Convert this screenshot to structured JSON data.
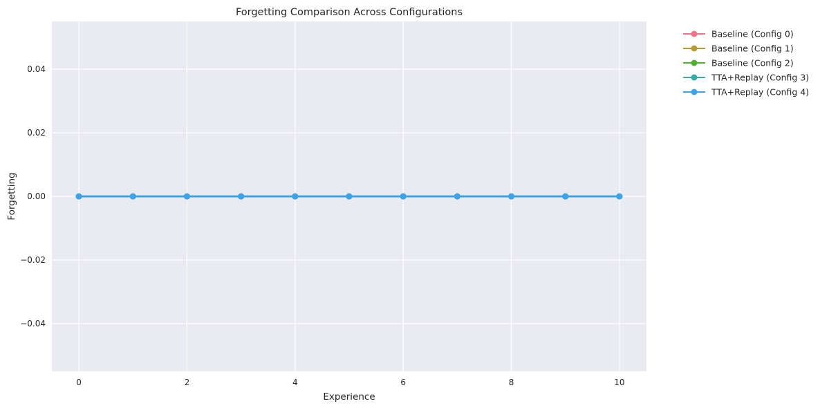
{
  "chart_data": {
    "type": "line",
    "title": "Forgetting Comparison Across Configurations",
    "xlabel": "Experience",
    "ylabel": "Forgetting",
    "x": [
      0,
      1,
      2,
      3,
      4,
      5,
      6,
      7,
      8,
      9,
      10
    ],
    "xlim": [
      -0.5,
      10.5
    ],
    "ylim": [
      -0.055,
      0.055
    ],
    "xticks": [
      0,
      2,
      4,
      6,
      8,
      10
    ],
    "yticks": [
      0.04,
      0.02,
      0.0,
      -0.02,
      -0.04
    ],
    "xtick_labels": [
      "0",
      "2",
      "4",
      "6",
      "8",
      "10"
    ],
    "ytick_labels": [
      "0.04",
      "0.02",
      "0.00",
      "−0.02",
      "−0.04"
    ],
    "grid": true,
    "legend_position": "outside-top-right",
    "background": "#eaeaf2",
    "series": [
      {
        "name": "Baseline (Config 0)",
        "color": "#f77189",
        "values": [
          0,
          0,
          0,
          0,
          0,
          0,
          0,
          0,
          0,
          0,
          0
        ]
      },
      {
        "name": "Baseline (Config 1)",
        "color": "#bb9832",
        "values": [
          0,
          0,
          0,
          0,
          0,
          0,
          0,
          0,
          0,
          0,
          0
        ]
      },
      {
        "name": "Baseline (Config 2)",
        "color": "#50b131",
        "values": [
          0,
          0,
          0,
          0,
          0,
          0,
          0,
          0,
          0,
          0,
          0
        ]
      },
      {
        "name": "TTA+Replay (Config 3)",
        "color": "#36ada4",
        "values": [
          0,
          0,
          0,
          0,
          0,
          0,
          0,
          0,
          0,
          0,
          0
        ]
      },
      {
        "name": "TTA+Replay (Config 4)",
        "color": "#3ba3ec",
        "values": [
          0,
          0,
          0,
          0,
          0,
          0,
          0,
          0,
          0,
          0,
          0
        ]
      }
    ]
  }
}
